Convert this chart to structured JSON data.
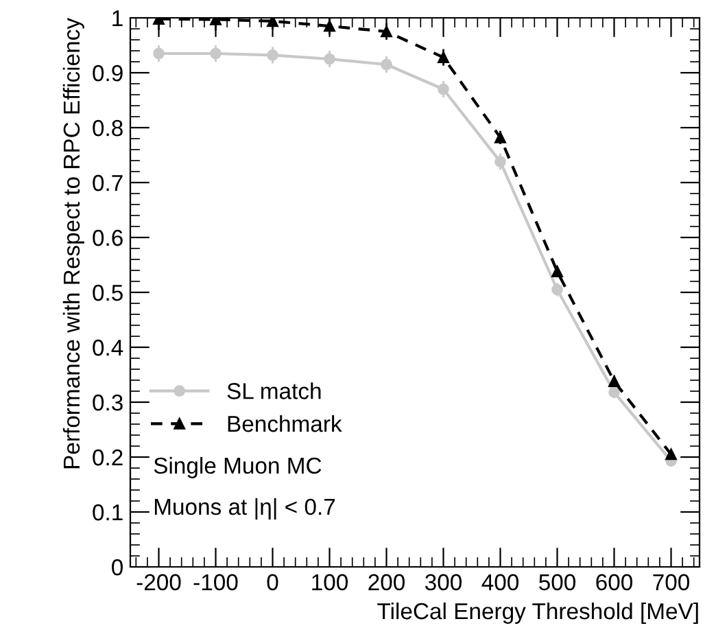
{
  "chart_data": {
    "type": "line",
    "xlabel": "TileCal Energy Threshold [MeV]",
    "ylabel": "Performance with Respect to RPC Efficiency",
    "x": [
      -200,
      -100,
      0,
      100,
      200,
      300,
      400,
      500,
      600,
      700
    ],
    "series": [
      {
        "name": "SL match",
        "color": "#c8c8c8",
        "marker": "circle",
        "line_style": "solid",
        "values": [
          0.935,
          0.935,
          0.932,
          0.925,
          0.915,
          0.87,
          0.738,
          0.505,
          0.318,
          0.193
        ],
        "errors": [
          0.015,
          0.015,
          0.015,
          0.015,
          0.015,
          0.015,
          0.015,
          0.012,
          0.01,
          0.008
        ]
      },
      {
        "name": "Benchmark",
        "color": "#000000",
        "marker": "triangle",
        "line_style": "dashed",
        "values": [
          0.998,
          0.997,
          0.994,
          0.985,
          0.975,
          0.928,
          0.782,
          0.538,
          0.338,
          0.205
        ],
        "errors": [
          0.02,
          0.02,
          0.015,
          0.015,
          0.015,
          0.015,
          0.012,
          0.01,
          0.01,
          0.008
        ]
      }
    ],
    "xlim": [
      -250,
      750
    ],
    "xticks": [
      -200,
      -100,
      0,
      100,
      200,
      300,
      400,
      500,
      600,
      700
    ],
    "ylim": [
      0,
      1
    ],
    "yticks": [
      0,
      0.1,
      0.2,
      0.3,
      0.4,
      0.5,
      0.6,
      0.7,
      0.8,
      0.9,
      1
    ],
    "annotations": [
      "Single Muon MC",
      "Muons at |η| < 0.7"
    ],
    "legend": "bottom left",
    "grid": false
  }
}
